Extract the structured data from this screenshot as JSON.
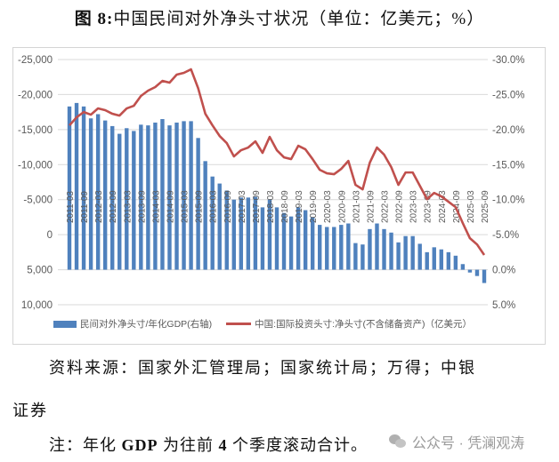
{
  "figure": {
    "title_prefix": "图 8:",
    "title_text": "中国民间对外净头寸状况（单位：亿美元；%）"
  },
  "legend": {
    "bar_label": "民间对外净头寸/年化GDP(右轴)",
    "line_label": "中国:国际投资头寸:净头寸(不含储备资产)（亿美元）"
  },
  "footer": {
    "source_line1": "资料来源：国家外汇管理局；国家统计局；万得；中银",
    "source_line2": "证券",
    "note_prefix": "注：年化 ",
    "note_bold1": "GDP",
    "note_mid": " 为往前 ",
    "note_bold2": "4",
    "note_suffix": " 个季度滚动合计。",
    "watermark": "公众号 · 凭澜观涛"
  },
  "colors": {
    "bar": "#4f81bd",
    "line": "#c0504d",
    "grid": "#d9d9d9",
    "axis_text": "#595959"
  },
  "chart_data": {
    "type": "bar+line",
    "title": "中国民间对外净头寸状况（单位：亿美元；%）",
    "xlabel": "",
    "left_axis": {
      "label": "亿美元",
      "ticks": [
        "-25,000",
        "-20,000",
        "-15,000",
        "-10,000",
        "-5,000",
        "0",
        "5,000",
        "10,000"
      ],
      "ylim": [
        -25000,
        10000
      ],
      "inverted": true
    },
    "right_axis": {
      "label": "%",
      "ticks": [
        "-30.0%",
        "-25.0%",
        "-20.0%",
        "-15.0%",
        "-10.0%",
        "-5.0%",
        "0.0%",
        "5.0%"
      ],
      "ylim": [
        -30,
        5
      ],
      "inverted": true
    },
    "grid": true,
    "legend_position": "bottom",
    "x_tick_labels": [
      "2011-03",
      "2011-09",
      "2012-03",
      "2012-09",
      "2013-03",
      "2013-09",
      "2014-03",
      "2014-09",
      "2015-03",
      "2015-09",
      "2016-03",
      "2016-09",
      "2017-03",
      "2017-09",
      "2018-03",
      "2018-09",
      "2019-03",
      "2019-09",
      "2020-03",
      "2020-09",
      "2021-03",
      "2021-09",
      "2022-03",
      "2022-09",
      "2023-03",
      "2023-09",
      "2024-03",
      "2024-09",
      "2025-03",
      "2025-09"
    ],
    "x": [
      "2011-03",
      "2011-06",
      "2011-09",
      "2011-12",
      "2012-03",
      "2012-06",
      "2012-09",
      "2012-12",
      "2013-03",
      "2013-06",
      "2013-09",
      "2013-12",
      "2014-03",
      "2014-06",
      "2014-09",
      "2014-12",
      "2015-03",
      "2015-06",
      "2015-09",
      "2015-12",
      "2016-03",
      "2016-06",
      "2016-09",
      "2016-12",
      "2017-03",
      "2017-06",
      "2017-09",
      "2017-12",
      "2018-03",
      "2018-06",
      "2018-09",
      "2018-12",
      "2019-03",
      "2019-06",
      "2019-09",
      "2019-12",
      "2020-03",
      "2020-06",
      "2020-09",
      "2020-12",
      "2021-03",
      "2021-06",
      "2021-09",
      "2021-12",
      "2022-03",
      "2022-06",
      "2022-09",
      "2022-12",
      "2023-03",
      "2023-06",
      "2023-09",
      "2023-12",
      "2024-03",
      "2024-06",
      "2024-09",
      "2024-12",
      "2025-03",
      "2025-06",
      "2025-09"
    ],
    "series": [
      {
        "name": "民间对外净头寸/年化GDP(右轴)",
        "type": "bar",
        "axis": "right",
        "unit": "%",
        "values": [
          -23.3,
          -23.8,
          -23.3,
          -21.6,
          -22.2,
          -21.3,
          -20.5,
          -19.4,
          -20.2,
          -19.8,
          -20.7,
          -20.6,
          -21.0,
          -21.5,
          -20.6,
          -21.0,
          -21.2,
          -21.2,
          -18.8,
          -15.5,
          -13.3,
          -12.3,
          -11.3,
          -10.0,
          -10.3,
          -10.3,
          -10.4,
          -8.9,
          -10.0,
          -8.9,
          -8.1,
          -7.6,
          -8.9,
          -8.5,
          -7.5,
          -6.4,
          -6.1,
          -6.1,
          -6.4,
          -6.6,
          -3.8,
          -3.6,
          -5.8,
          -6.6,
          -5.8,
          -5.3,
          -3.9,
          -4.8,
          -4.8,
          -3.7,
          -2.5,
          -3.2,
          -2.9,
          -2.5,
          -2.0,
          -0.8,
          0.4,
          0.9,
          1.9
        ]
      },
      {
        "name": "中国:国际投资头寸:净头寸(不含储备资产)（亿美元）",
        "type": "line",
        "axis": "left",
        "unit": "亿美元",
        "values": [
          -15600,
          -16750,
          -17500,
          -17130,
          -18020,
          -17770,
          -17260,
          -17000,
          -18020,
          -18400,
          -19800,
          -20560,
          -21070,
          -21950,
          -21700,
          -22840,
          -23100,
          -23600,
          -20900,
          -17260,
          -15610,
          -14090,
          -13070,
          -11170,
          -12060,
          -12440,
          -13320,
          -11680,
          -13960,
          -12060,
          -11040,
          -10790,
          -12690,
          -12180,
          -10790,
          -9260,
          -8760,
          -8630,
          -9390,
          -10530,
          -7110,
          -6470,
          -10280,
          -12440,
          -11420,
          -9640,
          -7110,
          -8880,
          -8880,
          -6980,
          -5080,
          -5960,
          -5460,
          -4700,
          -3930,
          -1650,
          510,
          1400,
          2900
        ]
      }
    ]
  }
}
